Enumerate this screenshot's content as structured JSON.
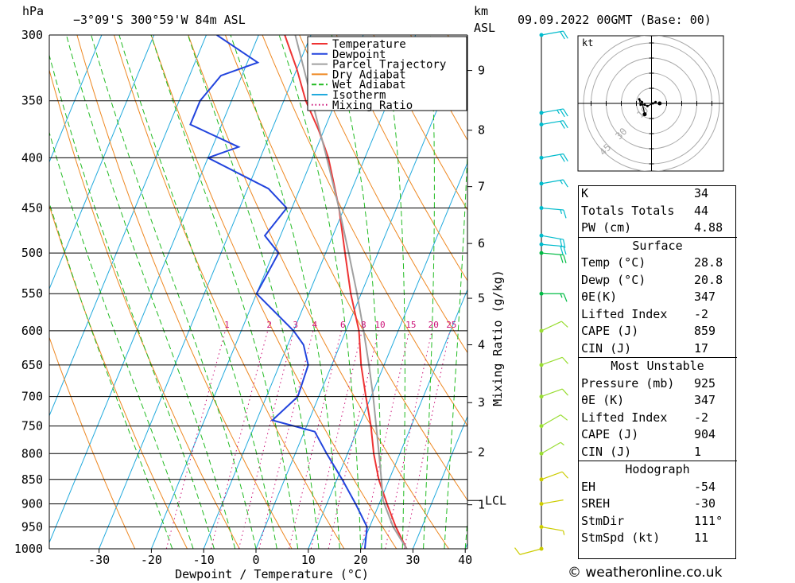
{
  "header": {
    "location": "−3°09'S  300°59'W  84m  ASL",
    "datetime": "09.09.2022  00GMT  (Base: 00)",
    "unit_left": "hPa",
    "unit_right_1": "km",
    "unit_right_2": "ASL"
  },
  "chart_data": {
    "type": "line",
    "xlabel": "Dewpoint / Temperature (°C)",
    "ylabel_right": "Mixing Ratio (g/kg)",
    "pressure_levels": [
      300,
      350,
      400,
      450,
      500,
      550,
      600,
      650,
      700,
      750,
      800,
      850,
      900,
      950,
      1000
    ],
    "x_ticks": [
      -30,
      -20,
      -10,
      0,
      10,
      20,
      30,
      40
    ],
    "xlim": [
      -40,
      40
    ],
    "ylim_hpa": [
      1000,
      300
    ],
    "km_ticks": [
      {
        "label": "1",
        "p": 902
      },
      {
        "label": "2",
        "p": 797
      },
      {
        "label": "3",
        "p": 710
      },
      {
        "label": "4",
        "p": 620
      },
      {
        "label": "5",
        "p": 556
      },
      {
        "label": "6",
        "p": 489
      },
      {
        "label": "7",
        "p": 428
      },
      {
        "label": "8",
        "p": 375
      },
      {
        "label": "9",
        "p": 326
      }
    ],
    "lcl": {
      "label": "LCL",
      "p": 893
    },
    "mixing_ratio_labels": [
      "1",
      "2",
      "3",
      "4",
      "6",
      "8",
      "10",
      "15",
      "20",
      "25"
    ],
    "mixing_ratio_values": [
      1,
      2,
      3,
      4,
      6,
      8,
      10,
      15,
      20,
      25
    ],
    "legend": [
      "Temperature",
      "Dewpoint",
      "Parcel Trajectory",
      "Dry Adiabat",
      "Wet Adiabat",
      "Isotherm",
      "Mixing Ratio"
    ],
    "colors": {
      "temperature": "#ee3333",
      "dewpoint": "#2244dd",
      "parcel": "#a0a0a0",
      "dry": "#ee8822",
      "wet": "#22bb22",
      "isotherm": "#22aadd",
      "mixing": "#cc1177"
    },
    "series": [
      {
        "name": "Temperature",
        "points": [
          [
            1000,
            28.8
          ],
          [
            950,
            25
          ],
          [
            900,
            21.5
          ],
          [
            850,
            18
          ],
          [
            800,
            15
          ],
          [
            750,
            12.3
          ],
          [
            700,
            9
          ],
          [
            650,
            5.6
          ],
          [
            600,
            2.5
          ],
          [
            550,
            -2
          ],
          [
            500,
            -6.3
          ],
          [
            450,
            -11
          ],
          [
            420,
            -14.5
          ],
          [
            400,
            -17
          ],
          [
            375,
            -21
          ],
          [
            350,
            -25.8
          ],
          [
            325,
            -30
          ],
          [
            300,
            -35
          ]
        ]
      },
      {
        "name": "Dewpoint",
        "points": [
          [
            1000,
            20.8
          ],
          [
            950,
            19.5
          ],
          [
            900,
            15.5
          ],
          [
            850,
            11
          ],
          [
            800,
            6
          ],
          [
            760,
            2
          ],
          [
            740,
            -7
          ],
          [
            700,
            -4
          ],
          [
            650,
            -4.5
          ],
          [
            620,
            -7
          ],
          [
            600,
            -10
          ],
          [
            550,
            -20
          ],
          [
            500,
            -19
          ],
          [
            480,
            -23
          ],
          [
            450,
            -21
          ],
          [
            430,
            -26
          ],
          [
            400,
            -40
          ],
          [
            390,
            -35
          ],
          [
            370,
            -46
          ],
          [
            350,
            -46
          ],
          [
            330,
            -44
          ],
          [
            320,
            -38
          ],
          [
            300,
            -48
          ]
        ]
      },
      {
        "name": "Parcel Trajectory",
        "points": [
          [
            1000,
            28.8
          ],
          [
            950,
            24.5
          ],
          [
            893,
            20.5
          ],
          [
            850,
            18.5
          ],
          [
            800,
            16
          ],
          [
            750,
            13.3
          ],
          [
            700,
            10.4
          ],
          [
            650,
            7.1
          ],
          [
            600,
            3.4
          ],
          [
            550,
            -0.8
          ],
          [
            500,
            -5.6
          ],
          [
            450,
            -11
          ],
          [
            400,
            -17.3
          ],
          [
            350,
            -24.6
          ],
          [
            300,
            -33
          ]
        ]
      }
    ],
    "wind_barbs": [
      {
        "p": 1000,
        "dir": 255,
        "kt": 10
      },
      {
        "p": 950,
        "dir": 100,
        "kt": 5
      },
      {
        "p": 900,
        "dir": 80,
        "kt": 3
      },
      {
        "p": 850,
        "dir": 70,
        "kt": 10
      },
      {
        "p": 800,
        "dir": 60,
        "kt": 5
      },
      {
        "p": 750,
        "dir": 60,
        "kt": 10
      },
      {
        "p": 700,
        "dir": 70,
        "kt": 10
      },
      {
        "p": 650,
        "dir": 70,
        "kt": 10
      },
      {
        "p": 600,
        "dir": 65,
        "kt": 10
      },
      {
        "p": 550,
        "dir": 90,
        "kt": 15
      },
      {
        "p": 500,
        "dir": 95,
        "kt": 20
      },
      {
        "p": 490,
        "dir": 95,
        "kt": 20
      },
      {
        "p": 480,
        "dir": 100,
        "kt": 20
      },
      {
        "p": 450,
        "dir": 95,
        "kt": 15
      },
      {
        "p": 425,
        "dir": 80,
        "kt": 15
      },
      {
        "p": 400,
        "dir": 80,
        "kt": 20
      },
      {
        "p": 370,
        "dir": 80,
        "kt": 20
      },
      {
        "p": 360,
        "dir": 80,
        "kt": 25
      },
      {
        "p": 300,
        "dir": 80,
        "kt": 20
      }
    ],
    "hodograph": {
      "unit": "kt",
      "rings": [
        {
          "r": 10,
          "label": "10"
        },
        {
          "r": 20,
          "label": ""
        },
        {
          "r": 30,
          "label": "30"
        },
        {
          "r": 40,
          "label": ""
        },
        {
          "r": 45,
          "label": "45"
        }
      ],
      "points": [
        [
          -5,
          -8
        ],
        [
          -7,
          1
        ],
        [
          -9,
          3
        ],
        [
          -8,
          -1
        ],
        [
          -5,
          -1
        ],
        [
          -3,
          -2
        ],
        [
          3,
          1
        ],
        [
          1,
          0
        ]
      ],
      "storm_motion": [
        1,
        0
      ]
    }
  },
  "indices": {
    "rows": [
      {
        "type": "row",
        "label": "K",
        "value": "34"
      },
      {
        "type": "row",
        "label": "Totals Totals",
        "value": "44"
      },
      {
        "type": "row",
        "label": "PW (cm)",
        "value": "4.88"
      },
      {
        "type": "head",
        "label": "Surface"
      },
      {
        "type": "row",
        "label": "Temp (°C)",
        "value": "28.8"
      },
      {
        "type": "row",
        "label": "Dewp (°C)",
        "value": "20.8"
      },
      {
        "type": "row",
        "label": "θE(K)",
        "value": "347"
      },
      {
        "type": "row",
        "label": "Lifted Index",
        "value": "-2"
      },
      {
        "type": "row",
        "label": "CAPE (J)",
        "value": "859"
      },
      {
        "type": "row",
        "label": "CIN (J)",
        "value": "17"
      },
      {
        "type": "head",
        "label": "Most Unstable"
      },
      {
        "type": "row",
        "label": "Pressure (mb)",
        "value": "925"
      },
      {
        "type": "row",
        "label": "θE (K)",
        "value": "347"
      },
      {
        "type": "row",
        "label": "Lifted Index",
        "value": "-2"
      },
      {
        "type": "row",
        "label": "CAPE (J)",
        "value": "904"
      },
      {
        "type": "row",
        "label": "CIN (J)",
        "value": "1"
      },
      {
        "type": "head",
        "label": "Hodograph"
      },
      {
        "type": "row",
        "label": "EH",
        "value": "-54"
      },
      {
        "type": "row",
        "label": "SREH",
        "value": "-30"
      },
      {
        "type": "row",
        "label": "StmDir",
        "value": "111°"
      },
      {
        "type": "row",
        "label": "StmSpd (kt)",
        "value": "11"
      }
    ]
  },
  "footer": {
    "credit": "© weatheronline.co.uk"
  }
}
